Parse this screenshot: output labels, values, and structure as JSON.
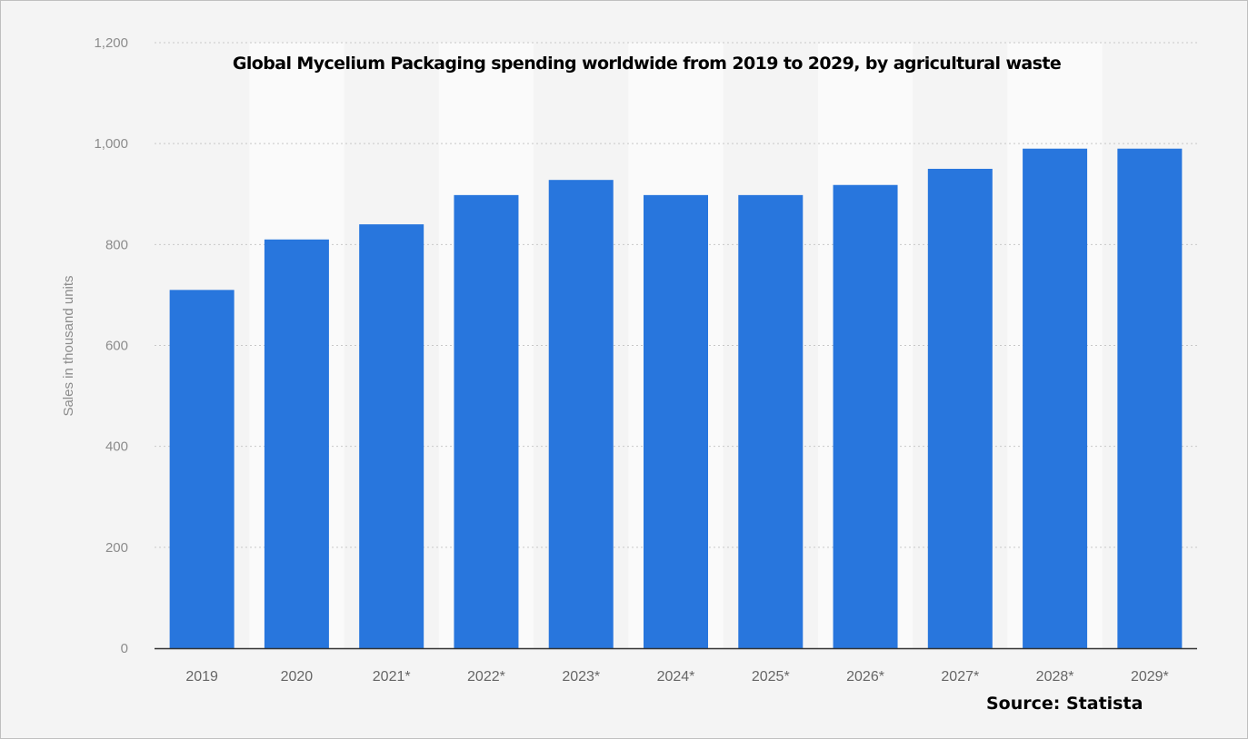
{
  "chart_data": {
    "type": "bar",
    "title": "Global Mycelium Packaging spending worldwide from 2019 to 2029, by agricultural waste",
    "ylabel": "Sales in thousand units",
    "xlabel": "",
    "categories": [
      "2019",
      "2020",
      "2021*",
      "2022*",
      "2023*",
      "2024*",
      "2025*",
      "2026*",
      "2027*",
      "2028*",
      "2029*"
    ],
    "values": [
      710,
      810,
      840,
      898,
      928,
      898,
      898,
      918,
      950,
      990,
      990
    ],
    "ylim": [
      0,
      1200
    ],
    "yticks": [
      0,
      200,
      400,
      600,
      800,
      1000,
      1200
    ],
    "ytick_labels": [
      "0",
      "200",
      "400",
      "600",
      "800",
      "1,000",
      "1,200"
    ],
    "grid": true,
    "bar_color": "#2876dd",
    "source": "Source: Statista"
  }
}
